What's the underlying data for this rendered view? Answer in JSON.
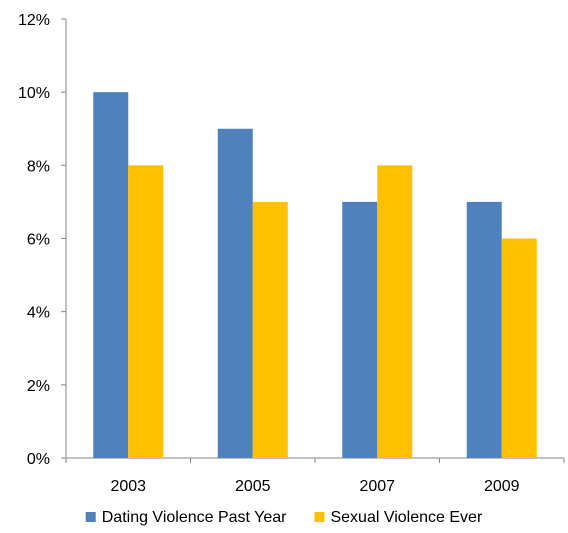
{
  "chart_data": {
    "type": "bar",
    "title": "",
    "xlabel": "",
    "ylabel": "",
    "categories": [
      "2003",
      "2005",
      "2007",
      "2009"
    ],
    "series": [
      {
        "name": "Dating Violence Past Year",
        "values": [
          10,
          9,
          7,
          7
        ],
        "color": "#4F81BD"
      },
      {
        "name": "Sexual Violence Ever",
        "values": [
          8,
          7,
          8,
          6
        ],
        "color": "#FFC000"
      }
    ],
    "ylim": [
      0,
      12
    ],
    "y_ticks": [
      0,
      2,
      4,
      6,
      8,
      10,
      12
    ],
    "y_tick_labels": [
      "0%",
      "2%",
      "4%",
      "6%",
      "8%",
      "10%",
      "12%"
    ],
    "grid": false,
    "legend_position": "bottom",
    "axis_color": "#868686"
  }
}
